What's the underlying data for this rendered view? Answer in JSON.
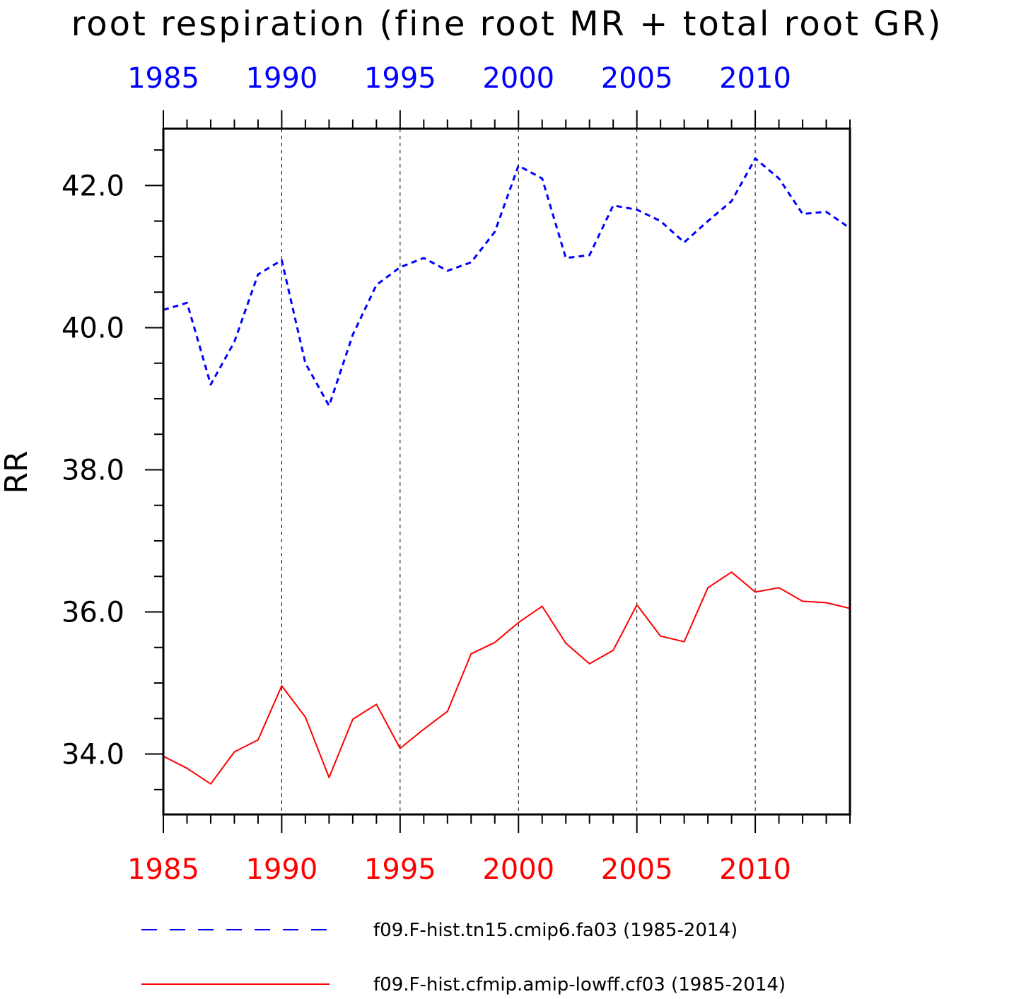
{
  "chart_data": {
    "type": "line",
    "title": "root respiration (fine root MR + total root GR)",
    "ylabel": "RR",
    "xlim": [
      1985,
      2014
    ],
    "ylim": [
      33.15,
      42.8
    ],
    "y_major_ticks": [
      34,
      36,
      38,
      40,
      42
    ],
    "y_tick_labels": [
      "34.0",
      "36.0",
      "38.0",
      "40.0",
      "42.0"
    ],
    "y_minor_step": 0.5,
    "x_major_ticks": [
      1985,
      1990,
      1995,
      2000,
      2005,
      2010
    ],
    "x_tick_labels": [
      "1985",
      "1990",
      "1995",
      "2000",
      "2005",
      "2010"
    ],
    "x_minor_step": 1,
    "x_gridlines": [
      1990,
      1995,
      2000,
      2005,
      2010
    ],
    "grid": "vertical dashed at major x ticks",
    "legend_placement": "bottom",
    "x": [
      1985,
      1986,
      1987,
      1988,
      1989,
      1990,
      1991,
      1992,
      1993,
      1994,
      1995,
      1996,
      1997,
      1998,
      1999,
      2000,
      2001,
      2002,
      2003,
      2004,
      2005,
      2006,
      2007,
      2008,
      2009,
      2010,
      2011,
      2012,
      2013,
      2014
    ],
    "series": [
      {
        "name": "f09.F-hist.tn15.cmip6.fa03 (1985-2014)",
        "color": "#0000ff",
        "style": "dashed",
        "values": [
          40.25,
          40.35,
          39.2,
          39.8,
          40.75,
          40.95,
          39.5,
          38.9,
          39.9,
          40.6,
          40.85,
          40.98,
          40.8,
          40.92,
          41.35,
          42.28,
          42.1,
          40.98,
          41.02,
          41.72,
          41.66,
          41.5,
          41.2,
          41.5,
          41.78,
          42.38,
          42.1,
          41.6,
          41.63,
          41.4
        ]
      },
      {
        "name": "f09.F-hist.cfmip.amip-lowff.cf03 (1985-2014)",
        "color": "#ff0000",
        "style": "solid",
        "values": [
          33.97,
          33.8,
          33.58,
          34.03,
          34.2,
          34.96,
          34.52,
          33.67,
          34.49,
          34.7,
          34.08,
          34.35,
          34.6,
          35.41,
          35.57,
          35.85,
          36.08,
          35.56,
          35.27,
          35.46,
          36.1,
          35.66,
          35.58,
          36.34,
          36.56,
          36.28,
          36.34,
          36.15,
          36.13,
          36.05
        ]
      }
    ]
  }
}
